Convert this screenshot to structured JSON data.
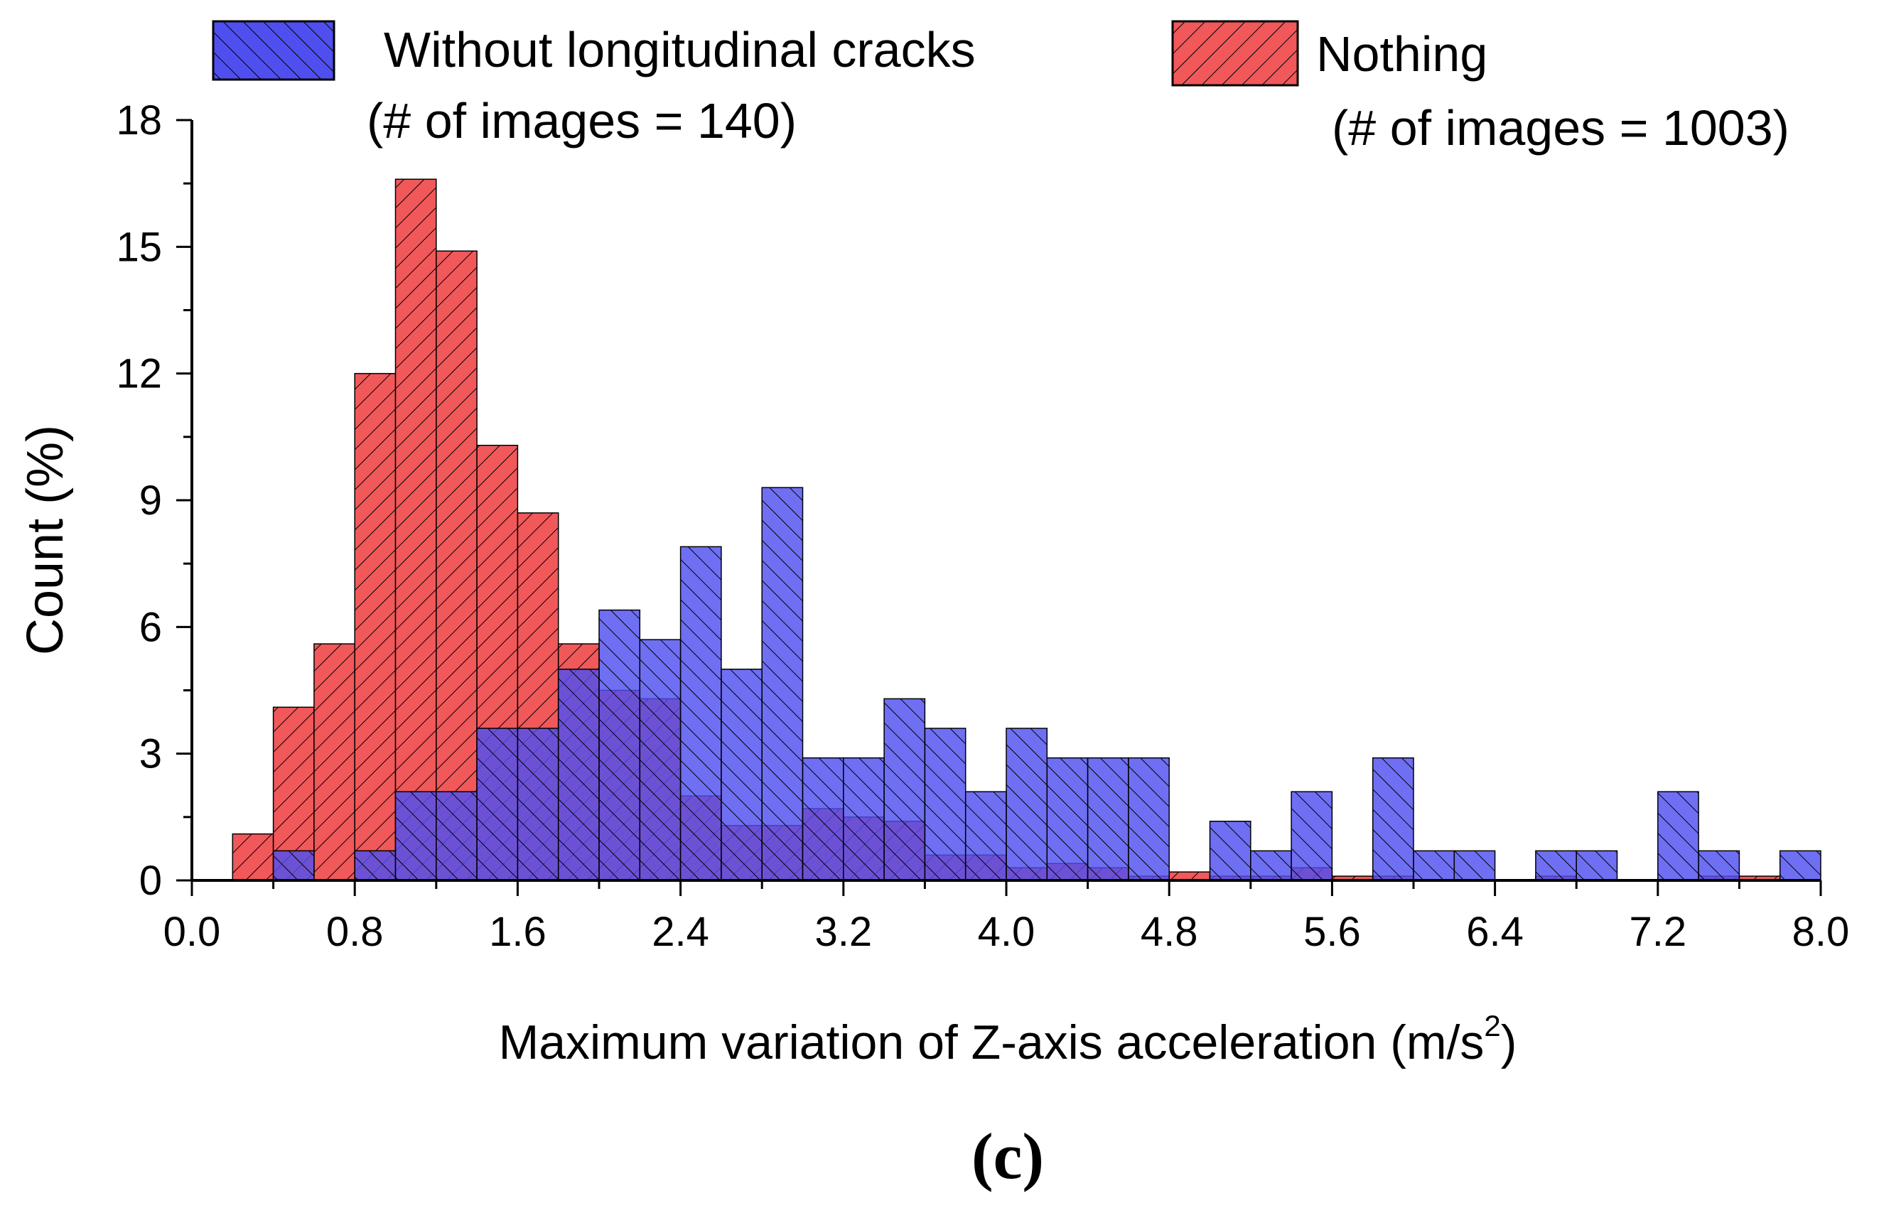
{
  "chart_data": {
    "type": "histogram",
    "xlabel": "Maximum variation of Z-axis acceleration (m/s",
    "xlabel_sup": "2",
    "xlabel_close": ")",
    "ylabel": "Count (%)",
    "panel_label": "(c)",
    "xlim": [
      0,
      8.0
    ],
    "ylim": [
      0,
      18
    ],
    "x_ticks": [
      "0.0",
      "0.8",
      "1.6",
      "2.4",
      "3.2",
      "4.0",
      "4.8",
      "5.6",
      "6.4",
      "7.2",
      "8.0"
    ],
    "y_ticks": [
      "0",
      "3",
      "6",
      "9",
      "12",
      "15",
      "18"
    ],
    "bin_width": 0.2,
    "bin_starts": [
      0.2,
      0.4,
      0.6,
      0.8,
      1.0,
      1.2,
      1.4,
      1.6,
      1.8,
      2.0,
      2.2,
      2.4,
      2.6,
      2.8,
      3.0,
      3.2,
      3.4,
      3.6,
      3.8,
      4.0,
      4.2,
      4.4,
      4.6,
      4.8,
      5.0,
      5.2,
      5.4,
      5.6,
      5.8,
      6.0,
      6.2,
      6.4,
      6.6,
      6.8,
      7.0,
      7.2,
      7.4,
      7.6,
      7.8
    ],
    "series": [
      {
        "name": "Nothing",
        "count_label": "(# of images = 1003)",
        "color": "#f0585a",
        "hatch": "forward",
        "values": [
          1.1,
          4.1,
          5.6,
          12.0,
          16.6,
          14.9,
          10.3,
          8.7,
          5.6,
          4.5,
          4.3,
          2.0,
          1.3,
          1.3,
          1.7,
          1.5,
          1.4,
          0.6,
          0.6,
          0.3,
          0.4,
          0.3,
          0.1,
          0.2,
          0.1,
          0.1,
          0.3,
          0.1,
          0.1,
          0.0,
          0.0,
          0.0,
          0.1,
          0.0,
          0.0,
          0.0,
          0.1,
          0.1,
          0.0
        ]
      },
      {
        "name": "Without longitudinal cracks",
        "count_label": "(# of images = 140)",
        "color": "#4f4ff0",
        "hatch": "backward",
        "values": [
          0.0,
          0.7,
          0.0,
          0.7,
          2.1,
          2.1,
          3.6,
          3.6,
          5.0,
          6.4,
          5.7,
          7.9,
          5.0,
          9.3,
          2.9,
          2.9,
          4.3,
          3.6,
          2.1,
          3.6,
          2.9,
          2.9,
          2.9,
          0.0,
          1.4,
          0.7,
          2.1,
          0.0,
          2.9,
          0.7,
          0.7,
          0.0,
          0.7,
          0.7,
          0.0,
          2.1,
          0.7,
          0.0,
          0.7
        ]
      }
    ],
    "legend_position": "top"
  }
}
